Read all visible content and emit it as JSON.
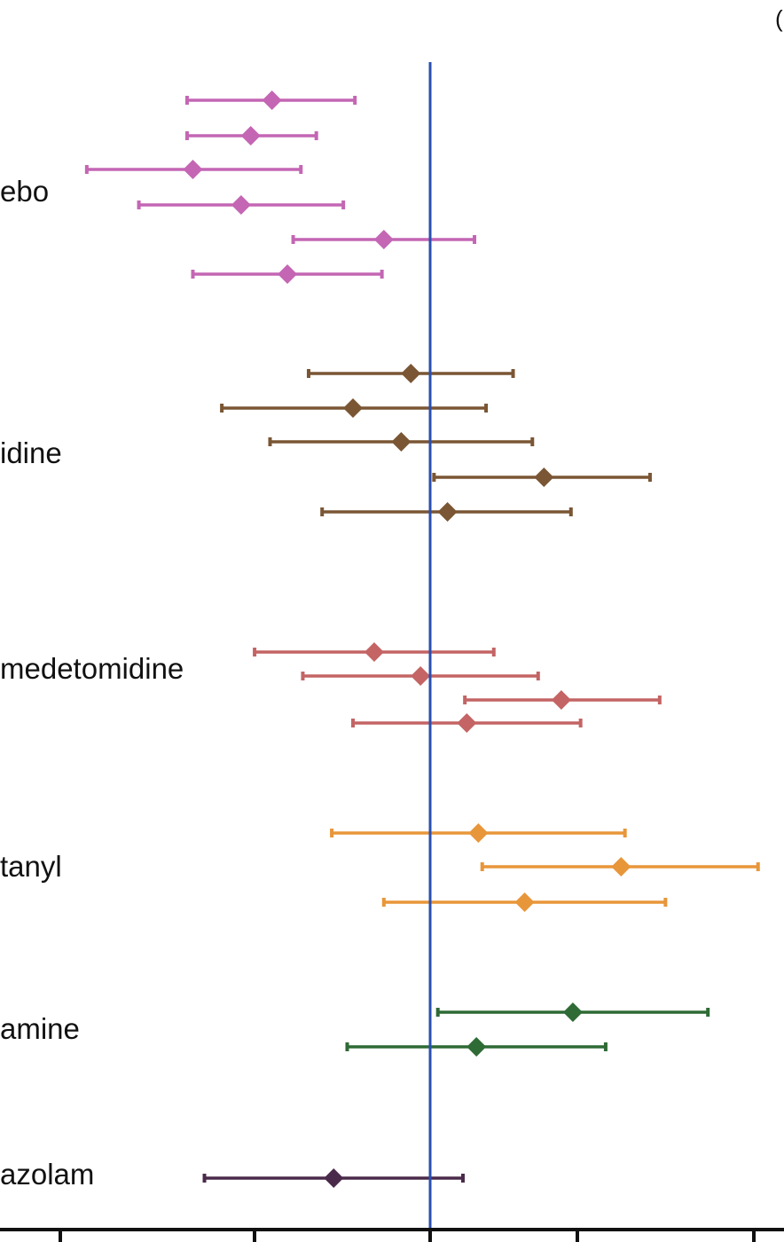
{
  "chart_data": {
    "type": "forest",
    "reference_line": 0,
    "xlim": [
      -2.0,
      1.8
    ],
    "colors": {
      "reference_line": "#2a4fb0",
      "axis": "#111111"
    },
    "corner_text": "(",
    "groups": [
      {
        "label": "ebo",
        "color": "#c466b4",
        "estimates": [
          {
            "est": -0.82,
            "lo": -1.26,
            "hi": -0.39
          },
          {
            "est": -0.93,
            "lo": -1.26,
            "hi": -0.59
          },
          {
            "est": -1.23,
            "lo": -1.78,
            "hi": -0.67
          },
          {
            "est": -0.98,
            "lo": -1.51,
            "hi": -0.45
          },
          {
            "est": -0.24,
            "lo": -0.71,
            "hi": 0.23
          },
          {
            "est": -0.74,
            "lo": -1.23,
            "hi": -0.25
          }
        ]
      },
      {
        "label": "idine",
        "color": "#7a5634",
        "estimates": [
          {
            "est": -0.1,
            "lo": -0.63,
            "hi": 0.43
          },
          {
            "est": -0.4,
            "lo": -1.08,
            "hi": 0.29
          },
          {
            "est": -0.15,
            "lo": -0.83,
            "hi": 0.53
          },
          {
            "est": 0.59,
            "lo": 0.02,
            "hi": 1.14
          },
          {
            "est": 0.09,
            "lo": -0.56,
            "hi": 0.73
          }
        ]
      },
      {
        "label": "medetomidine",
        "color": "#c46464",
        "estimates": [
          {
            "est": -0.29,
            "lo": -0.91,
            "hi": 0.33
          },
          {
            "est": -0.05,
            "lo": -0.66,
            "hi": 0.56
          },
          {
            "est": 0.68,
            "lo": 0.18,
            "hi": 1.19
          },
          {
            "est": 0.19,
            "lo": -0.4,
            "hi": 0.78
          }
        ]
      },
      {
        "label": "tanyl",
        "color": "#e8963a",
        "estimates": [
          {
            "est": 0.25,
            "lo": -0.51,
            "hi": 1.01
          },
          {
            "est": 0.99,
            "lo": 0.27,
            "hi": 1.7
          },
          {
            "est": 0.49,
            "lo": -0.24,
            "hi": 1.22
          }
        ]
      },
      {
        "label": "amine",
        "color": "#2f6b35",
        "estimates": [
          {
            "est": 0.74,
            "lo": 0.04,
            "hi": 1.44
          },
          {
            "est": 0.24,
            "lo": -0.43,
            "hi": 0.91
          }
        ]
      },
      {
        "label": "azolam",
        "color": "#4a2a4a",
        "estimates": [
          {
            "est": -0.5,
            "lo": -1.17,
            "hi": 0.17
          }
        ]
      }
    ]
  }
}
